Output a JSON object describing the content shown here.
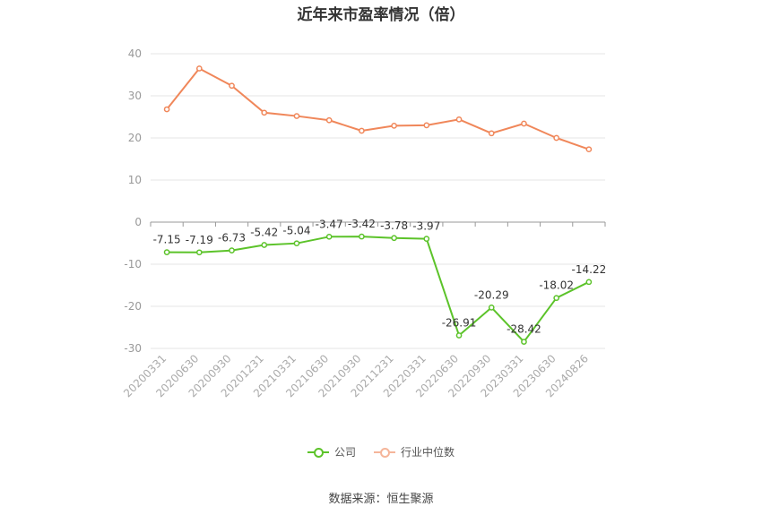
{
  "title": "近年来市盈率情况（倍）",
  "source_note": "数据来源：恒生聚源",
  "legend": {
    "company": "公司",
    "industry": "行业中位数"
  },
  "colors": {
    "company": "#5cc32a",
    "industry": "#f0875a",
    "grid": "#e6e6e6",
    "axis": "#999999",
    "label": "#333333"
  },
  "chart_data": {
    "type": "line",
    "title": "近年来市盈率情况（倍）",
    "xlabel": "",
    "ylabel": "",
    "ylim": [
      -30,
      40
    ],
    "yticks": [
      40,
      30,
      20,
      10,
      0,
      -10,
      -20,
      -30
    ],
    "grid": true,
    "legend_position": "bottom",
    "categories": [
      "20200331",
      "20200630",
      "20200930",
      "20201231",
      "20210331",
      "20210630",
      "20210930",
      "20211231",
      "20220331",
      "20220630",
      "20220930",
      "20230331",
      "20230630",
      "20240826"
    ],
    "series": [
      {
        "name": "公司",
        "values": [
          -7.15,
          -7.19,
          -6.73,
          -5.42,
          -5.04,
          -3.47,
          -3.42,
          -3.78,
          -3.97,
          -26.91,
          -20.29,
          -28.42,
          -18.02,
          -14.22
        ],
        "labels": [
          "-7.15",
          "-7.19",
          "-6.73",
          "-5.42",
          "-5.04",
          "-3.47",
          "-3.42",
          "-3.78",
          "-3.97",
          "-26.91",
          "-20.29",
          "-28.42",
          "-18.02",
          "-14.22"
        ]
      },
      {
        "name": "行业中位数",
        "values": [
          26.8,
          36.5,
          32.4,
          26.0,
          25.2,
          24.2,
          21.7,
          22.9,
          23.0,
          24.4,
          21.1,
          23.4,
          20.0,
          17.3
        ]
      }
    ]
  }
}
